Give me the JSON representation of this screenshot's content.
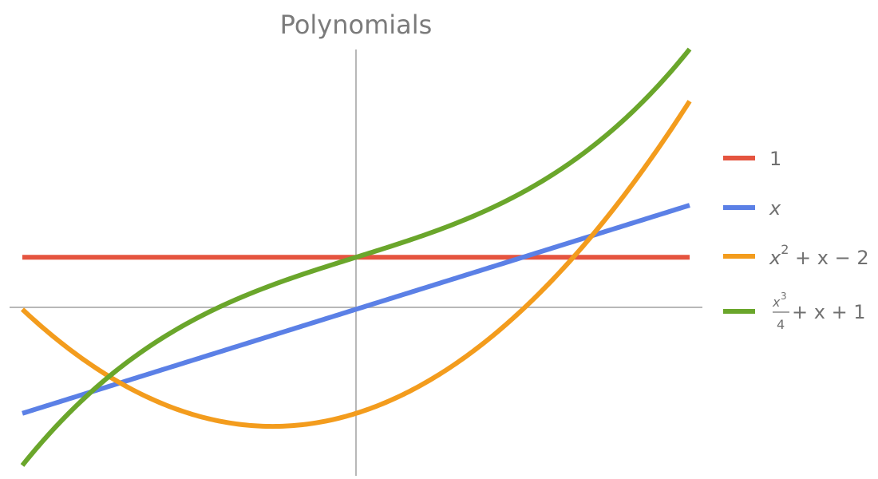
{
  "chart_data": {
    "type": "line",
    "title": "Polynomials",
    "xlim": [
      -2,
      2
    ],
    "ylim": [
      -3.2,
      5.3
    ],
    "grid": false,
    "legend_position": "right",
    "series": [
      {
        "name": "1",
        "color": "#e5543f",
        "formula": "1",
        "x": [
          -2,
          -1,
          0,
          1,
          2
        ],
        "y": [
          1,
          1,
          1,
          1,
          1
        ]
      },
      {
        "name": "x",
        "color": "#5b80e6",
        "formula": "x",
        "x": [
          -2,
          -1,
          0,
          1,
          2
        ],
        "y": [
          -2,
          -1,
          0,
          1,
          2
        ]
      },
      {
        "name": "x^2 + x - 2",
        "color": "#f39c1d",
        "formula": "x^2 + x - 2",
        "x": [
          -2,
          -1.5,
          -1,
          -0.5,
          0,
          0.5,
          1,
          1.5,
          2
        ],
        "y": [
          0,
          -1.25,
          -2,
          -2.25,
          -2,
          -1.25,
          0,
          1.75,
          4
        ]
      },
      {
        "name": "x^3/4 + x + 1",
        "color": "#6aa62b",
        "formula": "x^3/4 + x + 1",
        "x": [
          -2,
          -1.5,
          -1,
          -0.5,
          0,
          0.5,
          1,
          1.5,
          2
        ],
        "y": [
          -3,
          -1.34,
          -0.25,
          0.47,
          1,
          1.53,
          2.25,
          3.34,
          5
        ]
      }
    ],
    "legend": [
      {
        "label": "1",
        "color": "#e5543f"
      },
      {
        "label": "x",
        "color": "#5b80e6"
      },
      {
        "label": "x2 + x − 2",
        "parts": {
          "base": "x",
          "sup": "2",
          "rest": " + x − 2"
        },
        "color": "#f39c1d"
      },
      {
        "label": "x3/4 + x + 1",
        "parts": {
          "num_base": "x",
          "num_sup": "3",
          "den": "4",
          "rest": " + x + 1"
        },
        "color": "#6aa62b"
      }
    ]
  }
}
